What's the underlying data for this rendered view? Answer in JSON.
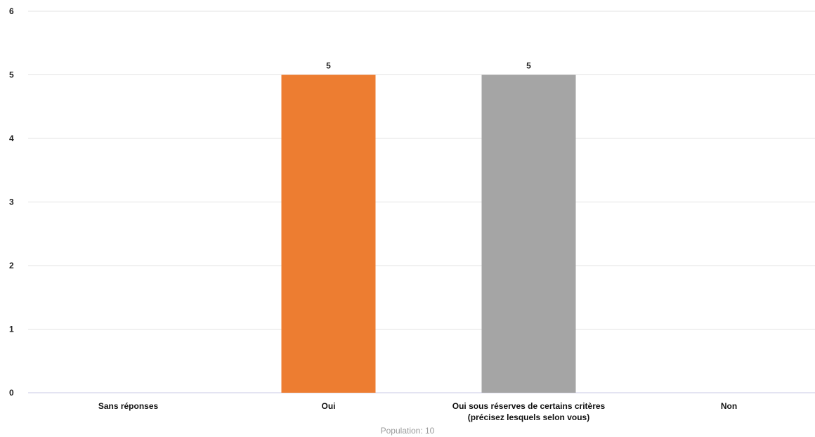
{
  "chart_data": {
    "type": "bar",
    "categories": [
      [
        "Sans réponses"
      ],
      [
        "Oui"
      ],
      [
        "Oui sous réserves de certains critères",
        "(précisez lesquels selon vous)"
      ],
      [
        "Non"
      ]
    ],
    "values": [
      0,
      5,
      5,
      0
    ],
    "bar_colors": [
      "#ED7D31",
      "#ED7D31",
      "#A5A5A5",
      "#A5A5A5"
    ],
    "data_labels": [
      "",
      "5",
      "5",
      ""
    ],
    "ylim": [
      0,
      6
    ],
    "yticks": [
      0,
      1,
      2,
      3,
      4,
      5,
      6
    ],
    "grid": true,
    "title": "",
    "xlabel": "",
    "ylabel": ""
  },
  "footnote": "Population: 10",
  "colors": {
    "grid": "#E3E3E3",
    "axis": "#C8C8E6"
  }
}
